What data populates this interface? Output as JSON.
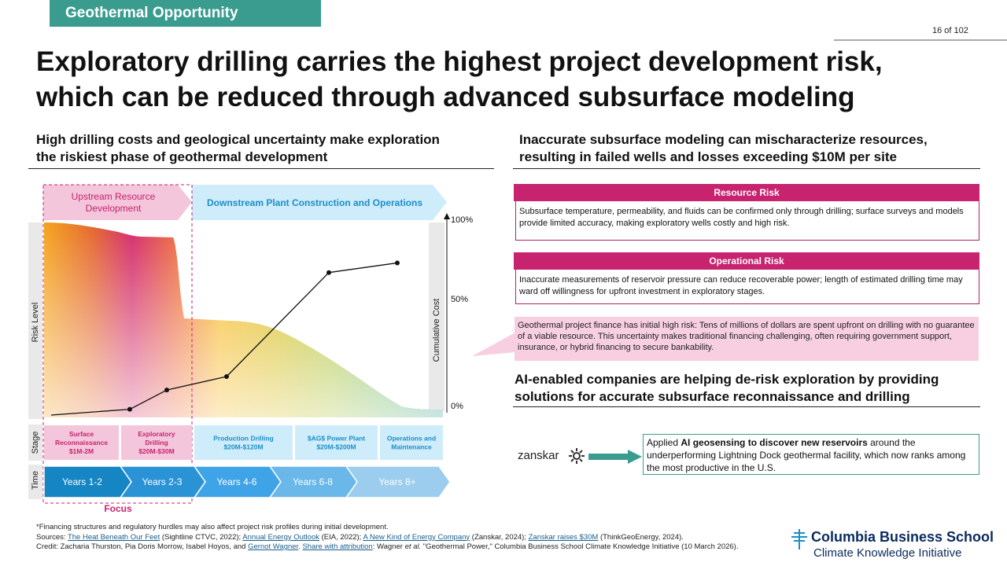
{
  "header": {
    "tag": "Geothermal Opportunity",
    "page": "16 of 102",
    "title_line1": "Exploratory drilling carries the highest project development risk,",
    "title_line2": "which can be reduced through advanced subsurface modeling"
  },
  "left": {
    "subhead_line1": "High drilling costs and geological uncertainty make exploration",
    "subhead_line2": "the riskiest phase of geothermal development"
  },
  "right": {
    "subhead_line1": "Inaccurate subsurface modeling can mischaracterize resources,",
    "subhead_line2": "resulting in failed wells and losses exceeding $10M per site",
    "resource_risk": {
      "title": "Resource Risk",
      "body": "Subsurface temperature, permeability, and fluids can be confirmed only through drilling; surface surveys and models provide limited accuracy, making exploratory wells costly and high risk."
    },
    "operational_risk": {
      "title": "Operational Risk",
      "body": "Inaccurate measurements of reservoir pressure can reduce recoverable power; length of estimated drilling time may ward off willingness for upfront investment in exploratory stages."
    },
    "note": "Geothermal project finance has initial high risk: Tens of millions of dollars are spent upfront on drilling with no guarantee of a viable resource. This uncertainty makes traditional financing challenging, often requiring government support, insurance, or hybrid financing to secure bankability.",
    "ai_subhead_line1": "AI-enabled companies are helping de-risk exploration by providing",
    "ai_subhead_line2": "solutions for accurate subsurface reconnaissance and drilling",
    "zanskar": {
      "logo": "zanskar",
      "text_prefix": "Applied ",
      "text_bold": "AI geosensing to discover new reservoirs",
      "text_suffix": " around the underperforming  Lightning Dock geothermal facility, which now ranks among the most productive in the U.S."
    }
  },
  "chart_data": {
    "type": "area",
    "phases": {
      "upstream": "Upstream Resource Development",
      "downstream": "Downstream Plant Construction and Operations"
    },
    "ylabel_left": "Risk Level",
    "ylabel_right": "Cumulative Cost",
    "right_ticks": [
      "100%",
      "50%",
      "0%"
    ],
    "cost_line": {
      "x": [
        0,
        1,
        2,
        3,
        4,
        5
      ],
      "values": [
        0,
        3,
        13,
        20,
        74,
        79
      ]
    },
    "row_labels": {
      "stage": "Stage",
      "time": "Time"
    },
    "stages": [
      {
        "name": "Surface Reconnaissance",
        "cost": "$1M-2M"
      },
      {
        "name": "Exploratory Drilling",
        "cost": "$20M-$30M"
      },
      {
        "name": "Production Drilling",
        "cost": "$20M-$120M"
      },
      {
        "name": "$AG$ Power Plant",
        "cost": "$20M-$200M"
      },
      {
        "name": "Operations and Maintenance",
        "cost": ""
      }
    ],
    "time": [
      "Years 1-2",
      "Years 2-3",
      "Years 4-6",
      "Years 6-8",
      "Years 8+"
    ],
    "focus": "Focus"
  },
  "footer": {
    "line1": "*Financing structures and regulatory hurdles may also affect project risk profiles during initial development.",
    "sources_label": "Sources: ",
    "s1": "The Heat Beneath Our Feet",
    "s1b": " (Sightline CTVC, 2022); ",
    "s2": "Annual Energy Outlook",
    "s2b": " (EIA, 2022); ",
    "s3": "A New Kind of Energy Company",
    "s3b": " (Zanskar, 2024); ",
    "s4": "Zanskar raises $30M",
    "s4b": " (ThinkGeoEnergy, 2024).",
    "credit": "Credit: Zacharia Thurston, Pia  Doris Morrow, Isabel Hoyos, and ",
    "c1": "Gernot Wagner",
    "c1b": ". ",
    "c2": "Share with attribution",
    "c2b": ": Wagner ",
    "etal": "et al.",
    "c3": " \"Geothermal Power,\" Columbia Business School Climate  Knowledge Initiative (10 March 2026)."
  },
  "logo": {
    "name": "Columbia Business School",
    "sub": "Climate Knowledge Initiative"
  }
}
